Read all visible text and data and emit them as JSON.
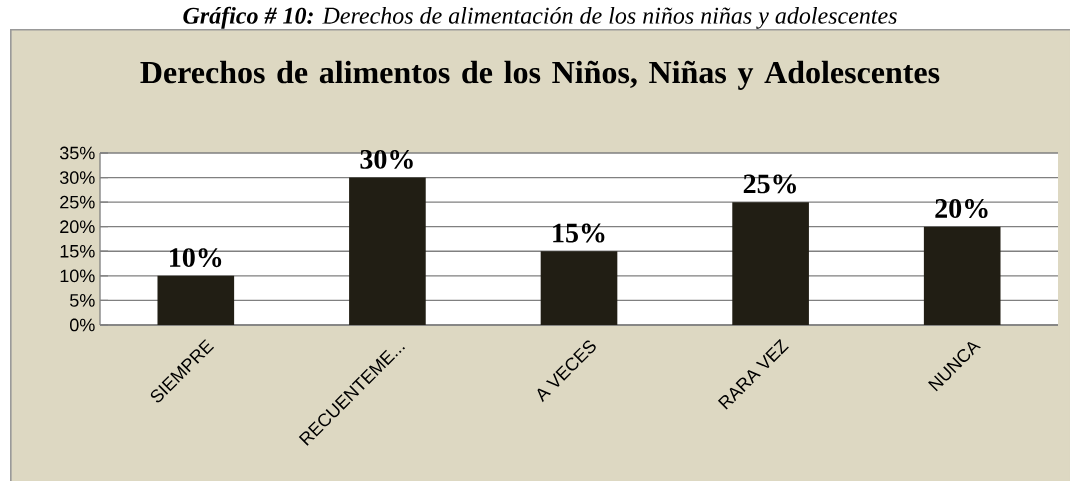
{
  "chart_data": {
    "type": "bar",
    "title": "Derechos de alimentos de los Niños, Niñas y Adolescentes",
    "annotations": [
      "**Gráfico # 10:** Derechos de alimentación de los niños niñas y adolescentes"
    ],
    "categories": [
      "SIEMPRE",
      "RECUENTEME...",
      "A VECES",
      "RARA VEZ",
      "NUNCA"
    ],
    "values": [
      10,
      30,
      15,
      25,
      20
    ],
    "value_labels": [
      "10%",
      "30%",
      "15%",
      "25%",
      "20%"
    ],
    "color": "#211e14",
    "ylim": [
      0,
      35
    ],
    "yticks": [
      {
        "value": 0,
        "label": "0%"
      },
      {
        "value": 5,
        "label": "5%"
      },
      {
        "value": 10,
        "label": "10%"
      },
      {
        "value": 15,
        "label": "15%"
      },
      {
        "value": 20,
        "label": "20%"
      },
      {
        "value": 25,
        "label": "25%"
      },
      {
        "value": 30,
        "label": "30%"
      },
      {
        "value": 35,
        "label": "35%"
      }
    ],
    "grid": "y"
  }
}
